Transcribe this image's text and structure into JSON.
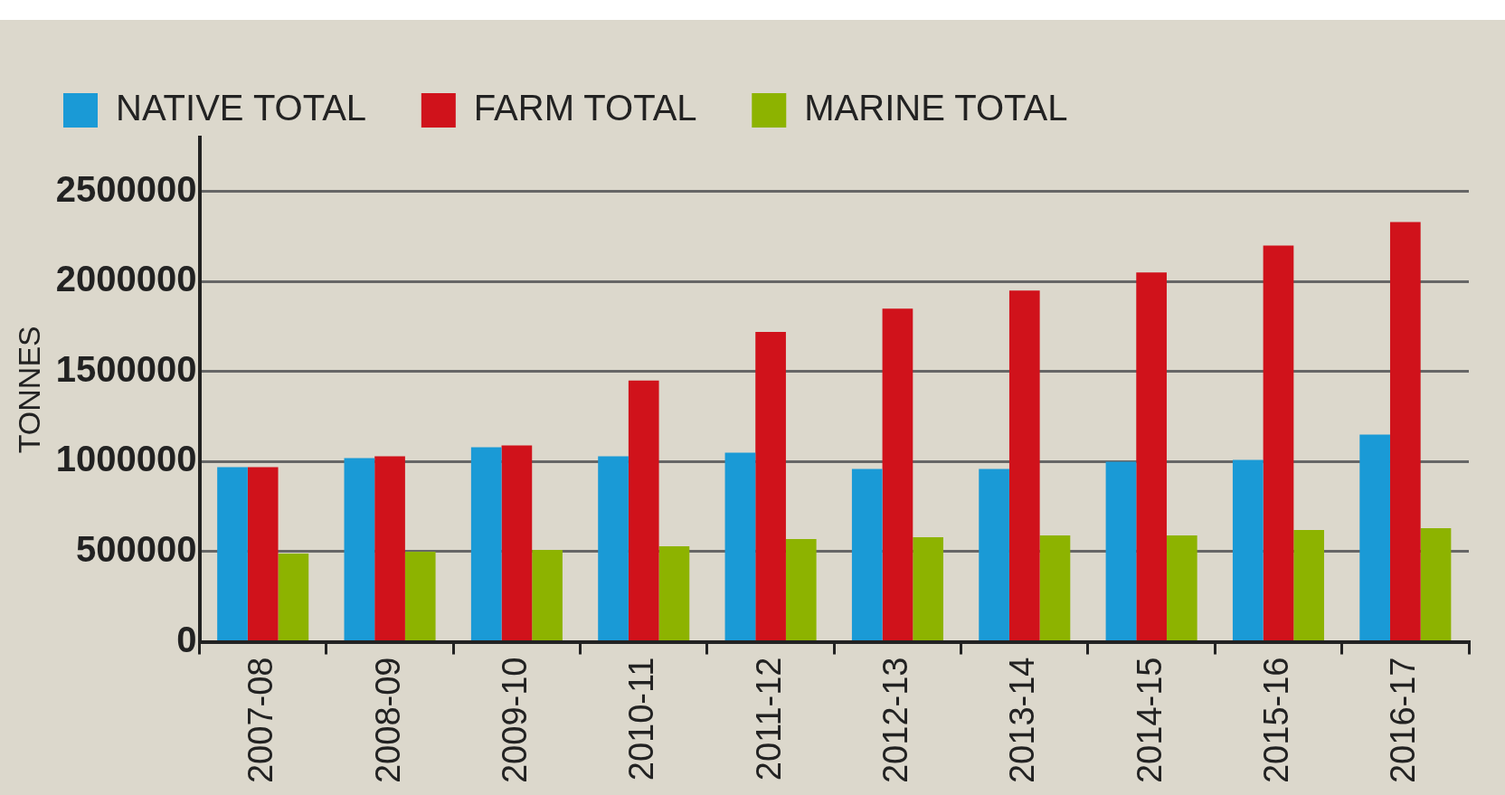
{
  "chart_data": {
    "type": "bar",
    "ylabel": "TONNES",
    "categories": [
      "2007-08",
      "2008-09",
      "2009-10",
      "2010-11",
      "2011-12",
      "2012-13",
      "2013-14",
      "2014-15",
      "2015-16",
      "2016-17"
    ],
    "series": [
      {
        "name": "NATIVE TOTAL",
        "color": "#1a9ad6",
        "values": [
          970000,
          1020000,
          1080000,
          1030000,
          1050000,
          960000,
          960000,
          1000000,
          1010000,
          1150000
        ]
      },
      {
        "name": "FARM TOTAL",
        "color": "#d0121b",
        "values": [
          970000,
          1030000,
          1090000,
          1450000,
          1720000,
          1850000,
          1950000,
          2050000,
          2200000,
          2330000
        ]
      },
      {
        "name": "MARINE TOTAL",
        "color": "#8db300",
        "values": [
          490000,
          500000,
          510000,
          530000,
          570000,
          580000,
          590000,
          590000,
          620000,
          630000
        ]
      }
    ],
    "ylim": [
      0,
      2800000
    ],
    "yticks": [
      0,
      500000,
      1000000,
      1500000,
      2000000,
      2500000
    ],
    "grid": "y",
    "legend": "top"
  }
}
